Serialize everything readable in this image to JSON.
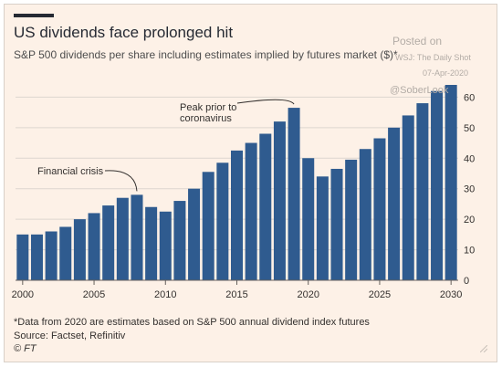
{
  "header": {
    "title": "US dividends face prolonged hit",
    "subtitle": "S&P 500 dividends per share including estimates implied by futures market ($)*"
  },
  "watermark": {
    "line1": "Posted on",
    "line2": "WSJ: The Daily Shot",
    "line3": "07-Apr-2020",
    "line4": "@SoberLook"
  },
  "footer": {
    "footnote": "*Data from 2020 are estimates based on S&P 500 annual dividend index futures",
    "source": "Source: Factset, Refinitiv",
    "copyright": "© FT"
  },
  "colors": {
    "bar": "#2f5b8f",
    "background": "#fdf1e7",
    "grid": "#ddd6cf",
    "axis": "#66605c",
    "text": "#33302e"
  },
  "chart_data": {
    "type": "bar",
    "title": "US dividends face prolonged hit",
    "subtitle": "S&P 500 dividends per share including estimates implied by futures market ($)*",
    "xlabel": "",
    "ylabel": "",
    "x": [
      2000,
      2001,
      2002,
      2003,
      2004,
      2005,
      2006,
      2007,
      2008,
      2009,
      2010,
      2011,
      2012,
      2013,
      2014,
      2015,
      2016,
      2017,
      2018,
      2019,
      2020,
      2021,
      2022,
      2023,
      2024,
      2025,
      2026,
      2027,
      2028,
      2029,
      2030
    ],
    "values": [
      15,
      15,
      16,
      17.5,
      20,
      22,
      24.5,
      27,
      28,
      24,
      22.5,
      26,
      30,
      35.5,
      38.5,
      42.5,
      45,
      48,
      52,
      56.5,
      40,
      34,
      36.5,
      39.5,
      43,
      46.5,
      50,
      54,
      58,
      62,
      64
    ],
    "ylim": [
      0,
      64
    ],
    "yticks": [
      0,
      10,
      20,
      30,
      40,
      50,
      60
    ],
    "xticks": [
      2000,
      2005,
      2010,
      2015,
      2020,
      2025,
      2030
    ],
    "grid": true,
    "y_axis_side": "right",
    "annotations": [
      {
        "text": "Financial crisis",
        "x": 2008
      },
      {
        "text_lines": [
          "Peak prior to",
          "coronavirus"
        ],
        "x": 2019
      }
    ]
  }
}
